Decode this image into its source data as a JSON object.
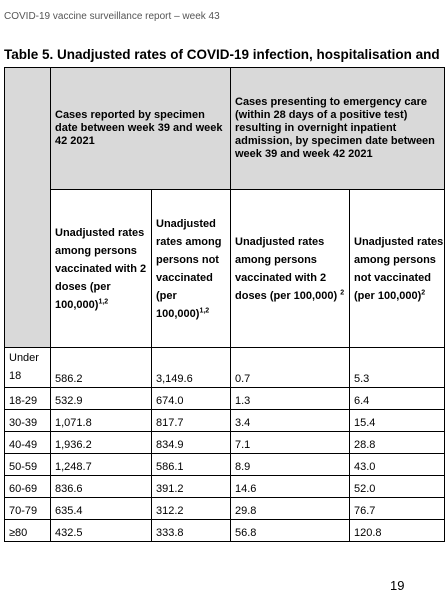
{
  "page": {
    "header": "COVID-19 vaccine surveillance report – week 43",
    "table_title": "Table 5. Unadjusted rates of COVID-19 infection, hospitalisation and",
    "page_number": "19"
  },
  "table": {
    "group_headers": [
      "Cases reported by specimen date between week 39 and week 42 2021",
      "Cases presenting to emergency care (within 28 days of a positive test) resulting in overnight inpatient admission, by specimen date between week 39 and week 42 2021"
    ],
    "sub_headers": [
      {
        "text": "Unadjusted rates among persons vaccinated with 2 doses (per 100,000)",
        "sup": "1,2"
      },
      {
        "text": "Unadjusted rates among persons not vaccinated (per 100,000)",
        "sup": "1,2"
      },
      {
        "text": "Unadjusted rates among persons vaccinated with 2 doses (per 100,000)",
        "sup": "2"
      },
      {
        "text": "Unadjusted rates among persons not vaccinated (per 100,000)",
        "sup": "2"
      }
    ],
    "rows": [
      {
        "age": "Under 18",
        "values": [
          "586.2",
          "3,149.6",
          "0.7",
          "5.3"
        ]
      },
      {
        "age": "18-29",
        "values": [
          "532.9",
          "674.0",
          "1.3",
          "6.4"
        ]
      },
      {
        "age": "30-39",
        "values": [
          "1,071.8",
          "817.7",
          "3.4",
          "15.4"
        ]
      },
      {
        "age": "40-49",
        "values": [
          "1,936.2",
          "834.9",
          "7.1",
          "28.8"
        ]
      },
      {
        "age": "50-59",
        "values": [
          "1,248.7",
          "586.1",
          "8.9",
          "43.0"
        ]
      },
      {
        "age": "60-69",
        "values": [
          "836.6",
          "391.2",
          "14.6",
          "52.0"
        ]
      },
      {
        "age": "70-79",
        "values": [
          "635.4",
          "312.2",
          "29.8",
          "76.7"
        ]
      },
      {
        "age": "≥80",
        "values": [
          "432.5",
          "333.8",
          "56.8",
          "120.8"
        ]
      }
    ]
  }
}
